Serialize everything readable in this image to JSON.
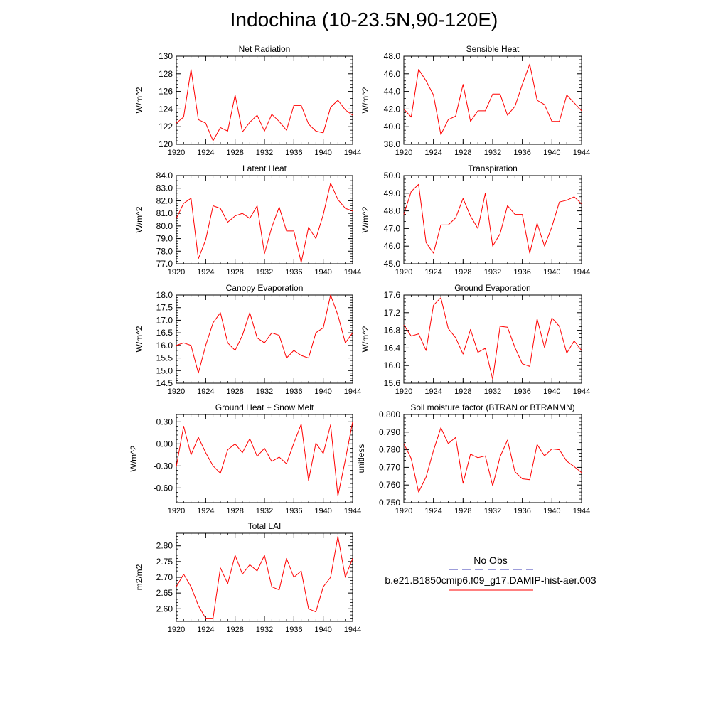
{
  "page_title": "Indochina (10-23.5N,90-120E)",
  "legend": {
    "obs_label": "No Obs",
    "obs_color": "#3b3bb5",
    "model_label": "b.e21.B1850cmip6.f09_g17.DAMIP-hist-aer.003",
    "model_color": "#ff0000"
  },
  "chart_data": [
    {
      "type": "line",
      "title": "Net Radiation",
      "xlabel": "",
      "ylabel": "W/m^2",
      "xlim": [
        1920,
        1944
      ],
      "ylim": [
        120,
        130
      ],
      "xticks": [
        1920,
        1924,
        1928,
        1932,
        1936,
        1940,
        1944
      ],
      "xtick_labels": [
        "1920",
        "1924",
        "1928",
        "1932",
        "1936",
        "1940",
        "1944"
      ],
      "yticks": [
        120,
        122,
        124,
        126,
        128,
        130
      ],
      "ytick_labels": [
        "120",
        "122",
        "124",
        "126",
        "128",
        "130"
      ],
      "x": [
        1920,
        1921,
        1922,
        1923,
        1924,
        1925,
        1926,
        1927,
        1928,
        1929,
        1930,
        1931,
        1932,
        1933,
        1934,
        1935,
        1936,
        1937,
        1938,
        1939,
        1940,
        1941,
        1942,
        1943,
        1944
      ],
      "series": [
        {
          "name": "b.e21.B1850cmip6.f09_g17.DAMIP-hist-aer.003",
          "values": [
            122.4,
            123.1,
            128.5,
            122.8,
            122.4,
            120.4,
            121.9,
            121.5,
            125.6,
            121.4,
            122.5,
            123.3,
            121.5,
            123.4,
            122.6,
            121.6,
            124.4,
            124.4,
            122.3,
            121.5,
            121.3,
            124.2,
            125.0,
            123.9,
            123.3
          ]
        }
      ]
    },
    {
      "type": "line",
      "title": "Sensible Heat",
      "xlabel": "",
      "ylabel": "W/m^2",
      "xlim": [
        1920,
        1944
      ],
      "ylim": [
        38.0,
        48.0
      ],
      "xticks": [
        1920,
        1924,
        1928,
        1932,
        1936,
        1940,
        1944
      ],
      "xtick_labels": [
        "1920",
        "1924",
        "1928",
        "1932",
        "1936",
        "1940",
        "1944"
      ],
      "yticks": [
        38,
        40,
        42,
        44,
        46,
        48
      ],
      "ytick_labels": [
        "38.0",
        "40.0",
        "42.0",
        "44.0",
        "46.0",
        "48.0"
      ],
      "x": [
        1920,
        1921,
        1922,
        1923,
        1924,
        1925,
        1926,
        1927,
        1928,
        1929,
        1930,
        1931,
        1932,
        1933,
        1934,
        1935,
        1936,
        1937,
        1938,
        1939,
        1940,
        1941,
        1942,
        1943,
        1944
      ],
      "series": [
        {
          "name": "b.e21.B1850cmip6.f09_g17.DAMIP-hist-aer.003",
          "values": [
            42.0,
            41.1,
            46.5,
            45.2,
            43.6,
            39.1,
            40.8,
            41.2,
            44.8,
            40.6,
            41.8,
            41.8,
            43.7,
            43.7,
            41.3,
            42.3,
            44.8,
            47.1,
            43.0,
            42.5,
            40.6,
            40.6,
            43.6,
            42.7,
            41.8
          ]
        }
      ]
    },
    {
      "type": "line",
      "title": "Latent Heat",
      "xlabel": "",
      "ylabel": "W/m^2",
      "xlim": [
        1920,
        1944
      ],
      "ylim": [
        77.0,
        84.0
      ],
      "xticks": [
        1920,
        1924,
        1928,
        1932,
        1936,
        1940,
        1944
      ],
      "xtick_labels": [
        "1920",
        "1924",
        "1928",
        "1932",
        "1936",
        "1940",
        "1944"
      ],
      "yticks": [
        77,
        78,
        79,
        80,
        81,
        82,
        83,
        84
      ],
      "ytick_labels": [
        "77.0",
        "78.0",
        "79.0",
        "80.0",
        "81.0",
        "82.0",
        "83.0",
        "84.0"
      ],
      "x": [
        1920,
        1921,
        1922,
        1923,
        1924,
        1925,
        1926,
        1927,
        1928,
        1929,
        1930,
        1931,
        1932,
        1933,
        1934,
        1935,
        1936,
        1937,
        1938,
        1939,
        1940,
        1941,
        1942,
        1943,
        1944
      ],
      "series": [
        {
          "name": "b.e21.B1850cmip6.f09_g17.DAMIP-hist-aer.003",
          "values": [
            80.6,
            81.8,
            82.2,
            77.4,
            78.9,
            81.6,
            81.4,
            80.3,
            80.8,
            81.0,
            80.6,
            81.6,
            77.8,
            79.9,
            81.5,
            79.6,
            79.6,
            77.1,
            79.9,
            79.0,
            80.9,
            83.4,
            82.1,
            81.4,
            81.2
          ]
        }
      ]
    },
    {
      "type": "line",
      "title": "Transpiration",
      "xlabel": "",
      "ylabel": "W/m^2",
      "xlim": [
        1920,
        1944
      ],
      "ylim": [
        45.0,
        50.0
      ],
      "xticks": [
        1920,
        1924,
        1928,
        1932,
        1936,
        1940,
        1944
      ],
      "xtick_labels": [
        "1920",
        "1924",
        "1928",
        "1932",
        "1936",
        "1940",
        "1944"
      ],
      "yticks": [
        45,
        46,
        47,
        48,
        49,
        50
      ],
      "ytick_labels": [
        "45.0",
        "46.0",
        "47.0",
        "48.0",
        "49.0",
        "50.0"
      ],
      "x": [
        1920,
        1921,
        1922,
        1923,
        1924,
        1925,
        1926,
        1927,
        1928,
        1929,
        1930,
        1931,
        1932,
        1933,
        1934,
        1935,
        1936,
        1937,
        1938,
        1939,
        1940,
        1941,
        1942,
        1943,
        1944
      ],
      "series": [
        {
          "name": "b.e21.B1850cmip6.f09_g17.DAMIP-hist-aer.003",
          "values": [
            47.8,
            49.1,
            49.5,
            46.2,
            45.6,
            47.2,
            47.2,
            47.6,
            48.7,
            47.7,
            47.0,
            49.0,
            46.0,
            46.7,
            48.3,
            47.8,
            47.8,
            45.6,
            47.3,
            46.0,
            47.1,
            48.5,
            48.6,
            48.8,
            48.4
          ]
        }
      ]
    },
    {
      "type": "line",
      "title": "Canopy Evaporation",
      "xlabel": "",
      "ylabel": "W/m^2",
      "xlim": [
        1920,
        1944
      ],
      "ylim": [
        14.5,
        18.0
      ],
      "xticks": [
        1920,
        1924,
        1928,
        1932,
        1936,
        1940,
        1944
      ],
      "xtick_labels": [
        "1920",
        "1924",
        "1928",
        "1932",
        "1936",
        "1940",
        "1944"
      ],
      "yticks": [
        14.5,
        15.0,
        15.5,
        16.0,
        16.5,
        17.0,
        17.5,
        18.0
      ],
      "ytick_labels": [
        "14.5",
        "15.0",
        "15.5",
        "16.0",
        "16.5",
        "17.0",
        "17.5",
        "18.0"
      ],
      "x": [
        1920,
        1921,
        1922,
        1923,
        1924,
        1925,
        1926,
        1927,
        1928,
        1929,
        1930,
        1931,
        1932,
        1933,
        1934,
        1935,
        1936,
        1937,
        1938,
        1939,
        1940,
        1941,
        1942,
        1943,
        1944
      ],
      "series": [
        {
          "name": "b.e21.B1850cmip6.f09_g17.DAMIP-hist-aer.003",
          "values": [
            16.0,
            16.1,
            16.0,
            14.9,
            16.0,
            16.9,
            17.3,
            16.1,
            15.8,
            16.4,
            17.3,
            16.3,
            16.1,
            16.5,
            16.4,
            15.5,
            15.8,
            15.6,
            15.5,
            16.5,
            16.7,
            18.0,
            17.2,
            16.1,
            16.5
          ]
        }
      ]
    },
    {
      "type": "line",
      "title": "Ground Evaporation",
      "xlabel": "",
      "ylabel": "W/m^2",
      "xlim": [
        1920,
        1944
      ],
      "ylim": [
        15.6,
        17.6
      ],
      "xticks": [
        1920,
        1924,
        1928,
        1932,
        1936,
        1940,
        1944
      ],
      "xtick_labels": [
        "1920",
        "1924",
        "1928",
        "1932",
        "1936",
        "1940",
        "1944"
      ],
      "yticks": [
        15.6,
        16.0,
        16.4,
        16.8,
        17.2,
        17.6
      ],
      "ytick_labels": [
        "15.6",
        "16.0",
        "16.4",
        "16.8",
        "17.2",
        "17.6"
      ],
      "x": [
        1920,
        1921,
        1922,
        1923,
        1924,
        1925,
        1926,
        1927,
        1928,
        1929,
        1930,
        1931,
        1932,
        1933,
        1934,
        1935,
        1936,
        1937,
        1938,
        1939,
        1940,
        1941,
        1942,
        1943,
        1944
      ],
      "series": [
        {
          "name": "b.e21.B1850cmip6.f09_g17.DAMIP-hist-aer.003",
          "values": [
            16.92,
            16.67,
            16.72,
            16.34,
            17.37,
            17.54,
            16.84,
            16.63,
            16.26,
            16.82,
            16.3,
            16.39,
            15.69,
            16.89,
            16.87,
            16.41,
            16.04,
            15.98,
            17.06,
            16.41,
            17.08,
            16.89,
            16.28,
            16.56,
            16.34
          ]
        }
      ]
    },
    {
      "type": "line",
      "title": "Ground Heat + Snow Melt",
      "xlabel": "",
      "ylabel": "W/m^2",
      "xlim": [
        1920,
        1944
      ],
      "ylim": [
        -0.8,
        0.4
      ],
      "xticks": [
        1920,
        1924,
        1928,
        1932,
        1936,
        1940,
        1944
      ],
      "xtick_labels": [
        "1920",
        "1924",
        "1928",
        "1932",
        "1936",
        "1940",
        "1944"
      ],
      "yticks": [
        -0.6,
        -0.3,
        0.0,
        0.3
      ],
      "ytick_labels": [
        "-0.60",
        "-0.30",
        "0.00",
        "0.30"
      ],
      "x": [
        1920,
        1921,
        1922,
        1923,
        1924,
        1925,
        1926,
        1927,
        1928,
        1929,
        1930,
        1931,
        1932,
        1933,
        1934,
        1935,
        1936,
        1937,
        1938,
        1939,
        1940,
        1941,
        1942,
        1943,
        1944
      ],
      "series": [
        {
          "name": "b.e21.B1850cmip6.f09_g17.DAMIP-hist-aer.003",
          "values": [
            -0.31,
            0.24,
            -0.15,
            0.09,
            -0.12,
            -0.3,
            -0.4,
            -0.08,
            0.0,
            -0.12,
            0.07,
            -0.17,
            -0.06,
            -0.24,
            -0.18,
            -0.27,
            0.01,
            0.27,
            -0.5,
            0.01,
            -0.13,
            0.26,
            -0.71,
            -0.22,
            0.3
          ]
        }
      ]
    },
    {
      "type": "line",
      "title": "Soil moisture factor (BTRAN or BTRANMN)",
      "xlabel": "",
      "ylabel": "unitless",
      "xlim": [
        1920,
        1944
      ],
      "ylim": [
        0.75,
        0.8
      ],
      "xticks": [
        1920,
        1924,
        1928,
        1932,
        1936,
        1940,
        1944
      ],
      "xtick_labels": [
        "1920",
        "1924",
        "1928",
        "1932",
        "1936",
        "1940",
        "1944"
      ],
      "yticks": [
        0.75,
        0.76,
        0.77,
        0.78,
        0.79,
        0.8
      ],
      "ytick_labels": [
        "0.750",
        "0.760",
        "0.770",
        "0.780",
        "0.790",
        "0.800"
      ],
      "x": [
        1920,
        1921,
        1922,
        1923,
        1924,
        1925,
        1926,
        1927,
        1928,
        1929,
        1930,
        1931,
        1932,
        1933,
        1934,
        1935,
        1936,
        1937,
        1938,
        1939,
        1940,
        1941,
        1942,
        1943,
        1944
      ],
      "series": [
        {
          "name": "b.e21.B1850cmip6.f09_g17.DAMIP-hist-aer.003",
          "values": [
            0.7835,
            0.775,
            0.756,
            0.7645,
            0.7795,
            0.7925,
            0.7835,
            0.787,
            0.761,
            0.7775,
            0.7755,
            0.7765,
            0.7595,
            0.776,
            0.7855,
            0.7675,
            0.7635,
            0.763,
            0.783,
            0.7765,
            0.7805,
            0.78,
            0.7735,
            0.7705,
            0.767
          ]
        }
      ]
    },
    {
      "type": "line",
      "title": "Total LAI",
      "xlabel": "",
      "ylabel": "m2/m2",
      "xlim": [
        1920,
        1944
      ],
      "ylim": [
        2.56,
        2.84
      ],
      "xticks": [
        1920,
        1924,
        1928,
        1932,
        1936,
        1940,
        1944
      ],
      "xtick_labels": [
        "1920",
        "1924",
        "1928",
        "1932",
        "1936",
        "1940",
        "1944"
      ],
      "yticks": [
        2.6,
        2.65,
        2.7,
        2.75,
        2.8
      ],
      "ytick_labels": [
        "2.60",
        "2.65",
        "2.70",
        "2.75",
        "2.80"
      ],
      "x": [
        1920,
        1921,
        1922,
        1923,
        1924,
        1925,
        1926,
        1927,
        1928,
        1929,
        1930,
        1931,
        1932,
        1933,
        1934,
        1935,
        1936,
        1937,
        1938,
        1939,
        1940,
        1941,
        1942,
        1943,
        1944
      ],
      "series": [
        {
          "name": "b.e21.B1850cmip6.f09_g17.DAMIP-hist-aer.003",
          "values": [
            2.67,
            2.71,
            2.67,
            2.61,
            2.57,
            2.57,
            2.73,
            2.68,
            2.77,
            2.71,
            2.74,
            2.72,
            2.77,
            2.67,
            2.66,
            2.76,
            2.7,
            2.72,
            2.6,
            2.59,
            2.67,
            2.7,
            2.83,
            2.7,
            2.76
          ]
        }
      ]
    }
  ]
}
